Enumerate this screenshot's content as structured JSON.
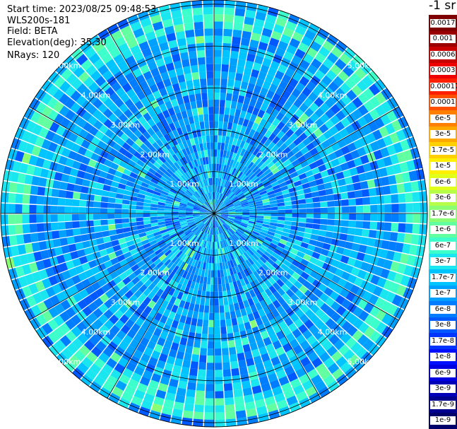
{
  "info": {
    "start_time": "Start time: 2023/08/25 09:48:53",
    "instrument": "WLS200s-181",
    "field": "Field: BETA",
    "elevation": "Elevation(deg): 35.30",
    "nrays": "NRays: 120"
  },
  "colorbar": {
    "title": "-1 sr",
    "labels": [
      "0.0017",
      "0.001",
      "0.0006",
      "0.0003",
      "0.00017",
      "0.0001",
      "6e-5",
      "3e-5",
      "1.7e-5",
      "1e-5",
      "6e-6",
      "3e-6",
      "1.7e-6",
      "1e-6",
      "6e-7",
      "3e-7",
      "1.7e-7",
      "1e-7",
      "6e-8",
      "3e-8",
      "1.7e-8",
      "1e-8",
      "6e-9",
      "3e-9",
      "1.7e-9",
      "1e-9"
    ],
    "colors": [
      "#7f0000",
      "#9a0000",
      "#c80000",
      "#ee0000",
      "#ff2000",
      "#ff5000",
      "#ff8000",
      "#ffa800",
      "#ffd000",
      "#fff000",
      "#e2ff1c",
      "#b6ff48",
      "#8aff74",
      "#62ffa0",
      "#3cffcc",
      "#1ae6f0",
      "#00c4ff",
      "#00a0ff",
      "#007cff",
      "#0058ff",
      "#0034ff",
      "#0010ff",
      "#0000e0",
      "#0000b8",
      "#00008f",
      "#00006b"
    ]
  },
  "chart_data": {
    "type": "heatmap",
    "projection": "polar-ppi",
    "field": "BETA",
    "units": "sr-1",
    "nrays": 120,
    "range_rings_km": [
      1,
      2,
      3,
      4,
      5
    ],
    "range_labels": [
      "1.00km",
      "2.00km",
      "3.00km",
      "4.00km",
      "5.00km"
    ],
    "max_range_km": 5.1,
    "azimuth_grid_deg": [
      0,
      30,
      60,
      90,
      120,
      150,
      180,
      210,
      240,
      270,
      300,
      330
    ],
    "colorscale": "jet",
    "value_range": [
      1e-09,
      0.0017
    ],
    "typical_value_range": [
      3e-08,
      3e-07
    ],
    "enhanced_ring_km": 4.6,
    "enhanced_ring_value": 1e-06
  }
}
